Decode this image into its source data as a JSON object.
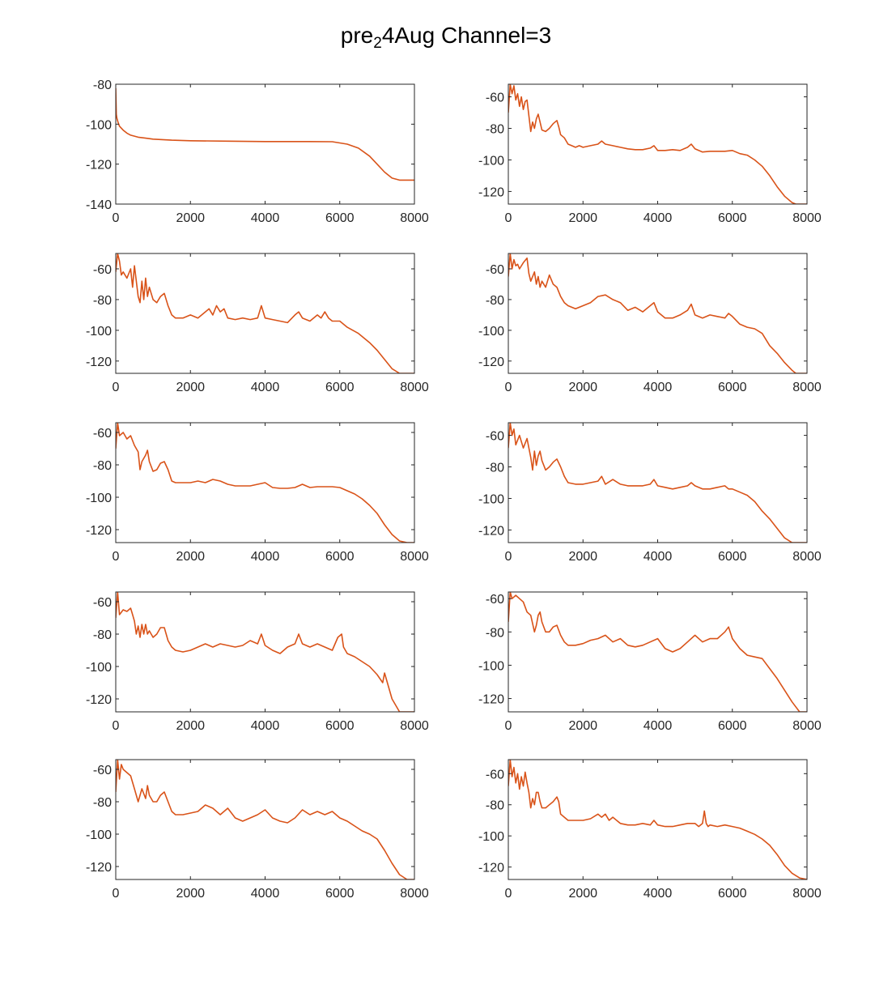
{
  "figure": {
    "title_pre": "pre",
    "title_sub": "2",
    "title_post": "4Aug Channel=3"
  },
  "chart_data": [
    {
      "type": "line",
      "row": 1,
      "col": 1,
      "xlim": [
        0,
        8000
      ],
      "ylim": [
        -140,
        -80
      ],
      "xticks": [
        0,
        2000,
        4000,
        6000,
        8000
      ],
      "yticks": [
        -140,
        -120,
        -100,
        -80
      ],
      "grid": false,
      "color": "#D95319",
      "x": [
        0,
        15,
        30,
        60,
        100,
        200,
        300,
        400,
        600,
        800,
        1000,
        1500,
        2000,
        3000,
        4000,
        5000,
        5800,
        6200,
        6500,
        6800,
        7000,
        7200,
        7400,
        7600,
        8000
      ],
      "y": [
        -82,
        -95,
        -97,
        -99,
        -101,
        -103,
        -104.5,
        -105.5,
        -106.5,
        -107,
        -107.5,
        -108,
        -108.3,
        -108.5,
        -108.7,
        -108.7,
        -108.8,
        -110,
        -112,
        -116,
        -120,
        -124,
        -127,
        -128,
        -128
      ]
    },
    {
      "type": "line",
      "row": 1,
      "col": 2,
      "xlim": [
        0,
        8000
      ],
      "ylim": [
        -128,
        -52
      ],
      "xticks": [
        0,
        2000,
        4000,
        6000,
        8000
      ],
      "yticks": [
        -120,
        -100,
        -80,
        -60
      ],
      "grid": false,
      "color": "#D95319",
      "x": [
        0,
        50,
        100,
        150,
        200,
        250,
        300,
        350,
        400,
        450,
        500,
        550,
        600,
        650,
        700,
        750,
        800,
        850,
        900,
        1000,
        1100,
        1200,
        1300,
        1350,
        1400,
        1500,
        1600,
        1700,
        1800,
        1900,
        2000,
        2200,
        2400,
        2500,
        2600,
        2800,
        3000,
        3200,
        3400,
        3600,
        3800,
        3900,
        4000,
        4200,
        4400,
        4600,
        4800,
        4900,
        5000,
        5200,
        5400,
        5600,
        5800,
        6000,
        6200,
        6400,
        6600,
        6800,
        7000,
        7200,
        7400,
        7600,
        7700,
        7800,
        8000
      ],
      "y": [
        -70,
        -52,
        -58,
        -53,
        -62,
        -58,
        -66,
        -60,
        -68,
        -63,
        -62,
        -72,
        -82,
        -76,
        -80,
        -74,
        -71,
        -76,
        -81,
        -82,
        -80,
        -77,
        -75,
        -79,
        -84,
        -86,
        -90,
        -91,
        -92,
        -91,
        -92,
        -91,
        -90,
        -88,
        -90,
        -91,
        -92,
        -93,
        -93.5,
        -93.5,
        -92.5,
        -91,
        -94,
        -94,
        -93.5,
        -94,
        -92,
        -90,
        -93,
        -95,
        -94.5,
        -94.5,
        -94.5,
        -94,
        -96,
        -97,
        -100,
        -104,
        -110,
        -117,
        -123,
        -127,
        -128,
        -128,
        -128
      ]
    },
    {
      "type": "line",
      "row": 2,
      "col": 1,
      "xlim": [
        0,
        8000
      ],
      "ylim": [
        -128,
        -50
      ],
      "xticks": [
        0,
        2000,
        4000,
        6000,
        8000
      ],
      "yticks": [
        -120,
        -100,
        -80,
        -60
      ],
      "grid": false,
      "color": "#D95319",
      "x": [
        0,
        50,
        100,
        150,
        200,
        300,
        400,
        450,
        500,
        600,
        650,
        700,
        750,
        800,
        850,
        900,
        1000,
        1100,
        1200,
        1300,
        1400,
        1500,
        1600,
        1800,
        2000,
        2200,
        2400,
        2500,
        2600,
        2700,
        2800,
        2900,
        3000,
        3200,
        3400,
        3600,
        3800,
        3900,
        4000,
        4200,
        4400,
        4600,
        4800,
        4900,
        5000,
        5200,
        5400,
        5500,
        5600,
        5700,
        5800,
        6000,
        6200,
        6500,
        6800,
        7000,
        7200,
        7400,
        7600,
        7800,
        8000
      ],
      "y": [
        -62,
        -50,
        -55,
        -64,
        -62,
        -66,
        -60,
        -72,
        -58,
        -78,
        -82,
        -68,
        -80,
        -66,
        -78,
        -72,
        -80,
        -82,
        -78,
        -76,
        -84,
        -90,
        -92,
        -92,
        -90,
        -92,
        -88,
        -86,
        -90,
        -84,
        -88,
        -86,
        -92,
        -93,
        -92,
        -93,
        -92,
        -84,
        -92,
        -93,
        -94,
        -95,
        -90,
        -88,
        -92,
        -94,
        -90,
        -92,
        -88,
        -92,
        -94,
        -94,
        -98,
        -102,
        -108,
        -113,
        -119,
        -125,
        -128,
        -128,
        -128
      ]
    },
    {
      "type": "line",
      "row": 2,
      "col": 2,
      "xlim": [
        0,
        8000
      ],
      "ylim": [
        -128,
        -50
      ],
      "xticks": [
        0,
        2000,
        4000,
        6000,
        8000
      ],
      "yticks": [
        -120,
        -100,
        -80,
        -60
      ],
      "grid": false,
      "color": "#D95319",
      "x": [
        0,
        50,
        100,
        150,
        200,
        250,
        300,
        400,
        500,
        550,
        600,
        700,
        750,
        800,
        850,
        900,
        1000,
        1100,
        1200,
        1300,
        1400,
        1500,
        1600,
        1800,
        2000,
        2200,
        2400,
        2600,
        2800,
        3000,
        3200,
        3400,
        3600,
        3800,
        3900,
        4000,
        4200,
        4400,
        4600,
        4800,
        4900,
        5000,
        5200,
        5400,
        5600,
        5800,
        5900,
        6000,
        6200,
        6400,
        6600,
        6800,
        7000,
        7200,
        7400,
        7600,
        7700,
        7800,
        8000
      ],
      "y": [
        -65,
        -50,
        -60,
        -54,
        -58,
        -57,
        -60,
        -56,
        -53,
        -63,
        -68,
        -62,
        -70,
        -65,
        -72,
        -68,
        -72,
        -64,
        -70,
        -72,
        -78,
        -82,
        -84,
        -86,
        -84,
        -82,
        -78,
        -77,
        -80,
        -82,
        -87,
        -85,
        -88,
        -84,
        -82,
        -88,
        -92,
        -92,
        -90,
        -87,
        -83,
        -90,
        -92,
        -90,
        -91,
        -92,
        -89,
        -91,
        -96,
        -98,
        -99,
        -102,
        -110,
        -115,
        -121,
        -126,
        -128,
        -128,
        -128
      ]
    },
    {
      "type": "line",
      "row": 3,
      "col": 1,
      "xlim": [
        0,
        8000
      ],
      "ylim": [
        -128,
        -54
      ],
      "xticks": [
        0,
        2000,
        4000,
        6000,
        8000
      ],
      "yticks": [
        -120,
        -100,
        -80,
        -60
      ],
      "grid": false,
      "color": "#D95319",
      "x": [
        0,
        50,
        100,
        200,
        300,
        400,
        500,
        600,
        650,
        700,
        800,
        850,
        900,
        1000,
        1100,
        1200,
        1300,
        1400,
        1500,
        1600,
        1800,
        2000,
        2200,
        2400,
        2600,
        2800,
        3000,
        3200,
        3400,
        3600,
        3800,
        4000,
        4200,
        4400,
        4600,
        4800,
        5000,
        5200,
        5400,
        5600,
        5800,
        6000,
        6200,
        6400,
        6600,
        6800,
        7000,
        7200,
        7400,
        7600,
        7800,
        8000
      ],
      "y": [
        -70,
        -54,
        -62,
        -60,
        -64,
        -62,
        -68,
        -72,
        -83,
        -78,
        -74,
        -71,
        -78,
        -84,
        -83,
        -79,
        -78,
        -83,
        -90,
        -91,
        -91,
        -91,
        -90,
        -91,
        -89,
        -90,
        -92,
        -93,
        -93,
        -93,
        -92,
        -91,
        -94,
        -94.5,
        -94.5,
        -94,
        -92,
        -94,
        -93.5,
        -93.5,
        -93.5,
        -94,
        -96,
        -98,
        -101,
        -105,
        -110,
        -117,
        -123,
        -127,
        -128,
        -128
      ]
    },
    {
      "type": "line",
      "row": 3,
      "col": 2,
      "xlim": [
        0,
        8000
      ],
      "ylim": [
        -128,
        -52
      ],
      "xticks": [
        0,
        2000,
        4000,
        6000,
        8000
      ],
      "yticks": [
        -120,
        -100,
        -80,
        -60
      ],
      "grid": false,
      "color": "#D95319",
      "x": [
        0,
        50,
        100,
        150,
        200,
        300,
        400,
        500,
        600,
        650,
        700,
        750,
        800,
        850,
        900,
        1000,
        1100,
        1200,
        1300,
        1400,
        1500,
        1600,
        1800,
        2000,
        2200,
        2400,
        2500,
        2600,
        2800,
        3000,
        3200,
        3400,
        3600,
        3800,
        3900,
        4000,
        4200,
        4400,
        4600,
        4800,
        4900,
        5000,
        5200,
        5400,
        5600,
        5800,
        5900,
        6000,
        6200,
        6400,
        6600,
        6800,
        7000,
        7200,
        7400,
        7600,
        7700,
        7800,
        8000
      ],
      "y": [
        -68,
        -52,
        -60,
        -56,
        -66,
        -60,
        -68,
        -62,
        -74,
        -82,
        -70,
        -79,
        -73,
        -70,
        -76,
        -82,
        -80,
        -77,
        -75,
        -80,
        -86,
        -90,
        -91,
        -91,
        -90,
        -89,
        -86,
        -91,
        -88,
        -91,
        -92,
        -92,
        -92,
        -91,
        -88,
        -92,
        -93,
        -94,
        -93,
        -92,
        -90,
        -92,
        -94,
        -94,
        -93,
        -92,
        -94,
        -94,
        -96,
        -98,
        -102,
        -108,
        -113,
        -119,
        -125,
        -128,
        -128,
        -128,
        -128
      ]
    },
    {
      "type": "line",
      "row": 4,
      "col": 1,
      "xlim": [
        0,
        8000
      ],
      "ylim": [
        -128,
        -54
      ],
      "xticks": [
        0,
        2000,
        4000,
        6000,
        8000
      ],
      "yticks": [
        -120,
        -100,
        -80,
        -60
      ],
      "grid": false,
      "color": "#D95319",
      "x": [
        0,
        50,
        100,
        200,
        300,
        400,
        450,
        500,
        550,
        600,
        650,
        700,
        750,
        800,
        850,
        900,
        1000,
        1100,
        1200,
        1300,
        1400,
        1500,
        1600,
        1800,
        2000,
        2200,
        2400,
        2600,
        2800,
        3000,
        3200,
        3400,
        3600,
        3800,
        3900,
        4000,
        4200,
        4400,
        4600,
        4800,
        4900,
        5000,
        5200,
        5400,
        5600,
        5800,
        5950,
        6050,
        6100,
        6200,
        6400,
        6600,
        6800,
        7000,
        7150,
        7200,
        7300,
        7400,
        7600,
        7800,
        8000
      ],
      "y": [
        -70,
        -54,
        -68,
        -65,
        -66,
        -64,
        -68,
        -72,
        -80,
        -75,
        -82,
        -74,
        -80,
        -74,
        -80,
        -78,
        -82,
        -80,
        -76,
        -76,
        -84,
        -88,
        -90,
        -91,
        -90,
        -88,
        -86,
        -88,
        -86,
        -87,
        -88,
        -87,
        -84,
        -86,
        -80,
        -87,
        -90,
        -92,
        -88,
        -86,
        -80,
        -86,
        -88,
        -86,
        -88,
        -90,
        -82,
        -80,
        -88,
        -92,
        -94,
        -97,
        -100,
        -105,
        -110,
        -104,
        -112,
        -120,
        -128,
        -128,
        -128
      ]
    },
    {
      "type": "line",
      "row": 4,
      "col": 2,
      "xlim": [
        0,
        8000
      ],
      "ylim": [
        -128,
        -56
      ],
      "xticks": [
        0,
        2000,
        4000,
        6000,
        8000
      ],
      "yticks": [
        -120,
        -100,
        -80,
        -60
      ],
      "grid": false,
      "color": "#D95319",
      "x": [
        0,
        50,
        100,
        200,
        300,
        400,
        500,
        600,
        700,
        750,
        800,
        850,
        900,
        1000,
        1100,
        1200,
        1300,
        1400,
        1500,
        1600,
        1800,
        2000,
        2200,
        2400,
        2600,
        2800,
        3000,
        3200,
        3400,
        3600,
        3800,
        4000,
        4200,
        4400,
        4600,
        4800,
        5000,
        5200,
        5400,
        5600,
        5800,
        5900,
        6000,
        6200,
        6400,
        6600,
        6800,
        7000,
        7200,
        7400,
        7600,
        7800,
        8000
      ],
      "y": [
        -74,
        -56,
        -60,
        -58,
        -60,
        -62,
        -68,
        -70,
        -80,
        -76,
        -70,
        -68,
        -74,
        -80,
        -80,
        -77,
        -76,
        -82,
        -86,
        -88,
        -88,
        -87,
        -85,
        -84,
        -82,
        -86,
        -84,
        -88,
        -89,
        -88,
        -86,
        -84,
        -90,
        -92,
        -90,
        -86,
        -82,
        -86,
        -84,
        -84,
        -80,
        -77,
        -84,
        -90,
        -94,
        -95,
        -96,
        -102,
        -108,
        -115,
        -122,
        -128,
        -128
      ]
    },
    {
      "type": "line",
      "row": 5,
      "col": 1,
      "xlim": [
        0,
        8000
      ],
      "ylim": [
        -128,
        -54
      ],
      "xticks": [
        0,
        2000,
        4000,
        6000,
        8000
      ],
      "yticks": [
        -120,
        -100,
        -80,
        -60
      ],
      "grid": false,
      "color": "#D95319",
      "x": [
        0,
        50,
        100,
        150,
        200,
        300,
        400,
        500,
        600,
        650,
        700,
        800,
        850,
        900,
        1000,
        1100,
        1200,
        1300,
        1400,
        1500,
        1600,
        1800,
        2000,
        2200,
        2400,
        2600,
        2800,
        3000,
        3200,
        3400,
        3600,
        3800,
        4000,
        4200,
        4400,
        4600,
        4800,
        5000,
        5200,
        5400,
        5600,
        5800,
        6000,
        6200,
        6400,
        6600,
        6800,
        7000,
        7200,
        7400,
        7600,
        7800,
        8000
      ],
      "y": [
        -74,
        -54,
        -66,
        -57,
        -60,
        -62,
        -64,
        -72,
        -80,
        -76,
        -72,
        -78,
        -70,
        -76,
        -80,
        -80,
        -76,
        -74,
        -80,
        -86,
        -88,
        -88,
        -87,
        -86,
        -82,
        -84,
        -88,
        -84,
        -90,
        -92,
        -90,
        -88,
        -85,
        -90,
        -92,
        -93,
        -90,
        -85,
        -88,
        -86,
        -88,
        -86,
        -90,
        -92,
        -95,
        -98,
        -100,
        -103,
        -110,
        -118,
        -125,
        -128,
        -128
      ]
    },
    {
      "type": "line",
      "row": 5,
      "col": 2,
      "xlim": [
        0,
        8000
      ],
      "ylim": [
        -128,
        -51
      ],
      "xticks": [
        0,
        2000,
        4000,
        6000,
        8000
      ],
      "yticks": [
        -120,
        -100,
        -80,
        -60
      ],
      "grid": false,
      "color": "#D95319",
      "x": [
        0,
        50,
        100,
        150,
        200,
        250,
        300,
        350,
        400,
        450,
        500,
        550,
        600,
        650,
        700,
        750,
        800,
        850,
        900,
        1000,
        1100,
        1200,
        1300,
        1350,
        1400,
        1500,
        1600,
        1800,
        2000,
        2200,
        2400,
        2500,
        2600,
        2700,
        2800,
        3000,
        3200,
        3400,
        3600,
        3800,
        3900,
        4000,
        4200,
        4400,
        4600,
        4800,
        5000,
        5100,
        5200,
        5250,
        5300,
        5350,
        5400,
        5600,
        5800,
        6000,
        6200,
        6400,
        6600,
        6800,
        7000,
        7200,
        7400,
        7600,
        7800,
        8000
      ],
      "y": [
        -68,
        -51,
        -62,
        -56,
        -66,
        -60,
        -70,
        -62,
        -68,
        -59,
        -66,
        -72,
        -82,
        -76,
        -80,
        -72,
        -72,
        -78,
        -82,
        -82,
        -80,
        -78,
        -75,
        -78,
        -86,
        -88,
        -90,
        -90,
        -90,
        -89,
        -86,
        -88,
        -86,
        -90,
        -88,
        -92,
        -93,
        -93,
        -92,
        -93,
        -90,
        -93,
        -94,
        -94,
        -93,
        -92,
        -92,
        -94,
        -92,
        -84,
        -92,
        -94,
        -93,
        -94,
        -93,
        -94,
        -95,
        -97,
        -99,
        -102,
        -106,
        -112,
        -119,
        -124,
        -127,
        -128
      ]
    }
  ]
}
